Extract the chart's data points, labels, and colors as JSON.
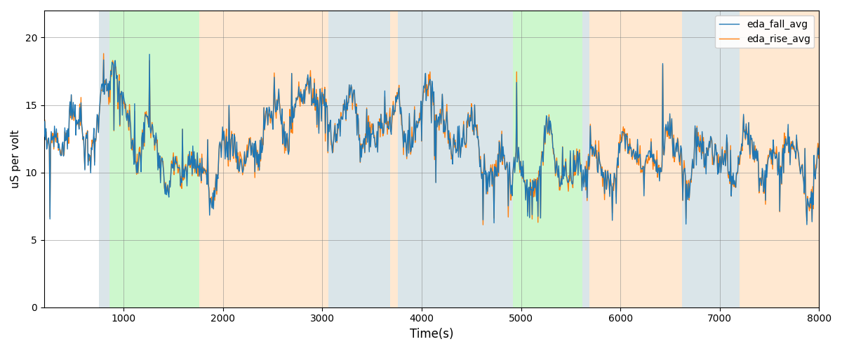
{
  "xlabel": "Time(s)",
  "ylabel": "uS per volt",
  "xlim": [
    200,
    8000
  ],
  "ylim": [
    0,
    22
  ],
  "yticks": [
    0,
    5,
    10,
    15,
    20
  ],
  "legend_labels": [
    "eda_fall_avg",
    "eda_rise_avg"
  ],
  "line_colors": [
    "#1f77b4",
    "#ff7f0e"
  ],
  "bg_segments": [
    {
      "xmin": 750,
      "xmax": 860,
      "color": "#aec6cf",
      "alpha": 0.45
    },
    {
      "xmin": 860,
      "xmax": 1760,
      "color": "#90ee90",
      "alpha": 0.45
    },
    {
      "xmin": 1760,
      "xmax": 3060,
      "color": "#ffcc99",
      "alpha": 0.45
    },
    {
      "xmin": 3060,
      "xmax": 3680,
      "color": "#aec6cf",
      "alpha": 0.45
    },
    {
      "xmin": 3680,
      "xmax": 3760,
      "color": "#ffcc99",
      "alpha": 0.45
    },
    {
      "xmin": 3760,
      "xmax": 4920,
      "color": "#aec6cf",
      "alpha": 0.45
    },
    {
      "xmin": 4920,
      "xmax": 4990,
      "color": "#90ee90",
      "alpha": 0.45
    },
    {
      "xmin": 4990,
      "xmax": 5620,
      "color": "#90ee90",
      "alpha": 0.45
    },
    {
      "xmin": 5620,
      "xmax": 5690,
      "color": "#aec6cf",
      "alpha": 0.45
    },
    {
      "xmin": 5690,
      "xmax": 6620,
      "color": "#ffcc99",
      "alpha": 0.45
    },
    {
      "xmin": 6620,
      "xmax": 7200,
      "color": "#aec6cf",
      "alpha": 0.45
    },
    {
      "xmin": 7200,
      "xmax": 8000,
      "color": "#ffcc99",
      "alpha": 0.45
    }
  ],
  "seed": 99,
  "n_points": 1200,
  "t_start": 200,
  "t_end": 8000,
  "line_width": 1.0,
  "figsize": [
    12,
    5
  ],
  "dpi": 100
}
